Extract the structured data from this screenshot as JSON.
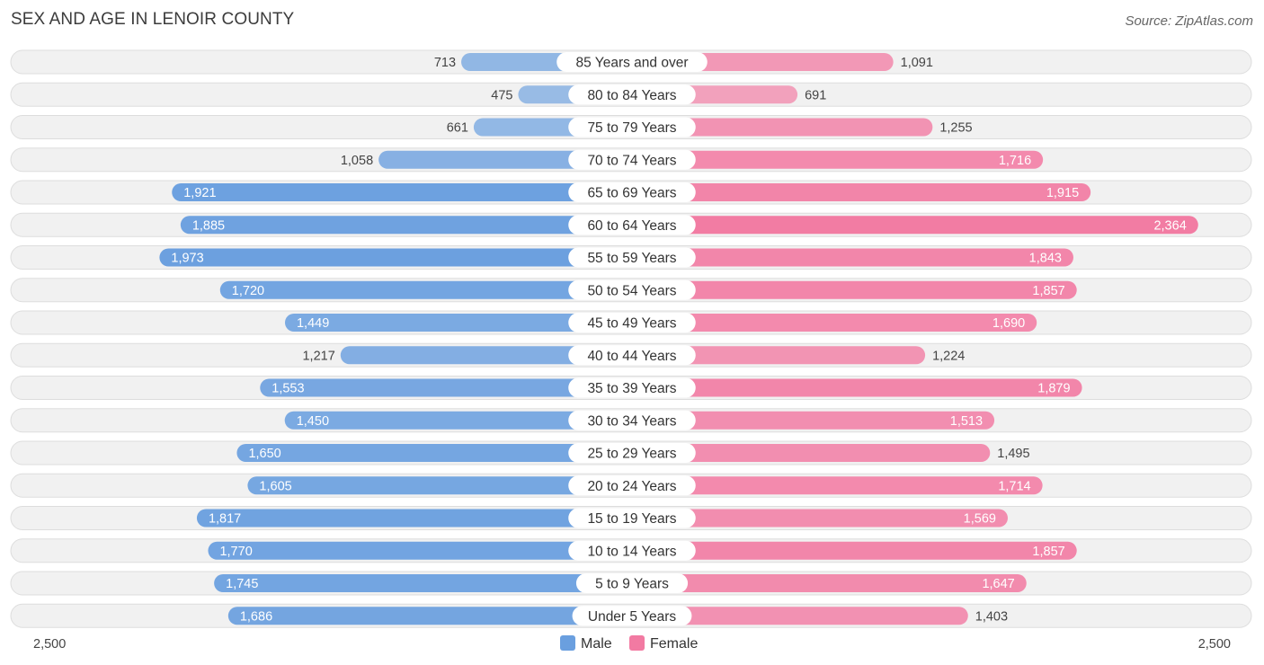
{
  "header": {
    "title": "SEX AND AGE IN LENOIR COUNTY",
    "source": "Source: ZipAtlas.com"
  },
  "colors": {
    "male": "#6a9fdf",
    "female": "#f27aa2"
  },
  "chart_data": {
    "type": "bar",
    "orientation": "horizontal-diverging",
    "title": "SEX AND AGE IN LENOIR COUNTY",
    "categories": [
      "85 Years and over",
      "80 to 84 Years",
      "75 to 79 Years",
      "70 to 74 Years",
      "65 to 69 Years",
      "60 to 64 Years",
      "55 to 59 Years",
      "50 to 54 Years",
      "45 to 49 Years",
      "40 to 44 Years",
      "35 to 39 Years",
      "30 to 34 Years",
      "25 to 29 Years",
      "20 to 24 Years",
      "15 to 19 Years",
      "10 to 14 Years",
      "5 to 9 Years",
      "Under 5 Years"
    ],
    "series": [
      {
        "name": "Male",
        "values": [
          713,
          475,
          661,
          1058,
          1921,
          1885,
          1973,
          1720,
          1449,
          1217,
          1553,
          1450,
          1650,
          1605,
          1817,
          1770,
          1745,
          1686
        ]
      },
      {
        "name": "Female",
        "values": [
          1091,
          691,
          1255,
          1716,
          1915,
          2364,
          1843,
          1857,
          1690,
          1224,
          1879,
          1513,
          1495,
          1714,
          1569,
          1857,
          1647,
          1403
        ]
      }
    ],
    "value_labels": {
      "male": [
        "713",
        "475",
        "661",
        "1,058",
        "1,921",
        "1,885",
        "1,973",
        "1,720",
        "1,449",
        "1,217",
        "1,553",
        "1,450",
        "1,650",
        "1,605",
        "1,817",
        "1,770",
        "1,745",
        "1,686"
      ],
      "female": [
        "1,091",
        "691",
        "1,255",
        "1,716",
        "1,915",
        "2,364",
        "1,843",
        "1,857",
        "1,690",
        "1,224",
        "1,879",
        "1,513",
        "1,495",
        "1,714",
        "1,569",
        "1,857",
        "1,647",
        "1,403"
      ]
    },
    "axis": {
      "max": 2500,
      "left_label": "2,500",
      "right_label": "2,500"
    },
    "legend": {
      "placement": "bottom-center",
      "items": [
        "Male",
        "Female"
      ]
    }
  }
}
